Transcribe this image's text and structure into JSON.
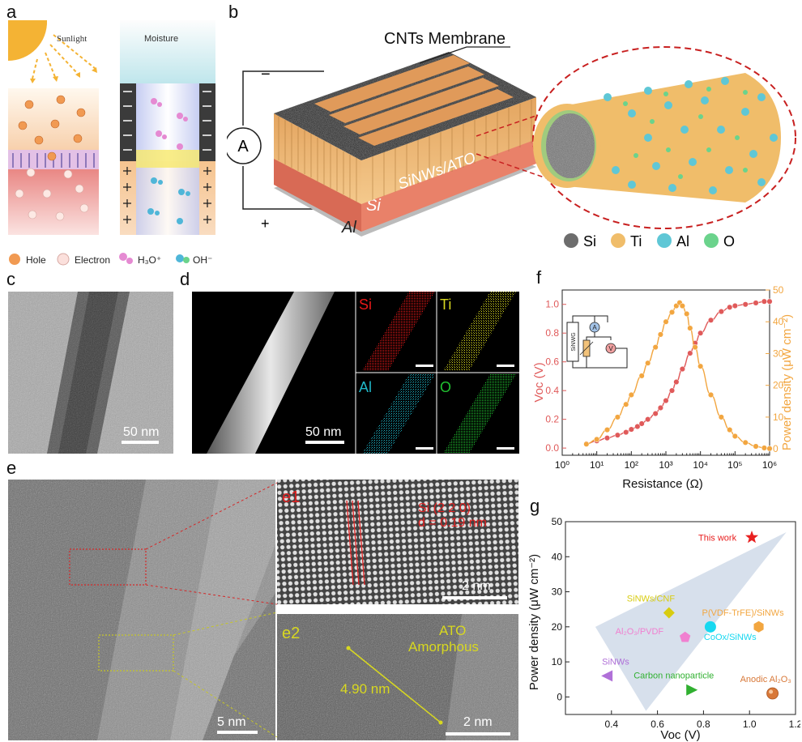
{
  "panel_letters": {
    "a": "a",
    "b": "b",
    "c": "c",
    "d": "d",
    "e": "e",
    "f": "f",
    "g": "g"
  },
  "panel_a": {
    "sunlight": "Sunlight",
    "moisture": "Moisture",
    "legend": {
      "hole": "Hole",
      "electron": "Electron",
      "h3o": "H₃O⁺",
      "oh": "OH⁻"
    }
  },
  "panel_b": {
    "membrane_label": "CNTs Membrane",
    "layer_top": "SiNWs/ATO",
    "layer_mid": "Si",
    "layer_bottom": "Al",
    "ammeter": "A",
    "minus": "−",
    "plus": "+",
    "legend": [
      "Si",
      "Ti",
      "Al",
      "O"
    ],
    "colors": {
      "si": "#6d6d6d",
      "ti": "#f0bd6a",
      "al": "#5fc7d6",
      "o": "#6bd38c",
      "wafer": "#e07a64",
      "membrane": "#1a1a1a"
    }
  },
  "panel_c": {
    "scale": "50 nm"
  },
  "panel_d": {
    "scale": "50 nm",
    "maps": [
      "Si",
      "Ti",
      "Al",
      "O"
    ],
    "map_colors": [
      "#e81818",
      "#d8d820",
      "#20b8c8",
      "#20c030"
    ]
  },
  "panel_e": {
    "scale": "5 nm",
    "e1_tag": "e1",
    "e1_line1": "Si (2 2 0)",
    "e1_line2": "d = 0.19 nm",
    "e1_scale": "2 nm",
    "e2_tag": "e2",
    "e2_line1": "ATO",
    "e2_line2": "Amorphous",
    "e2_measure": "4.90 nm",
    "e2_scale": "2 nm"
  },
  "chart_data": [
    {
      "id": "f",
      "type": "line",
      "xlabel": "Resistance (Ω)",
      "ylabel_left": "Voc (V)",
      "ylabel_right": "Power density (μW cm⁻²)",
      "xscale": "log",
      "xlim": [
        1,
        1000000
      ],
      "x_ticks": [
        "10⁰",
        "10¹",
        "10²",
        "10³",
        "10⁴",
        "10⁵",
        "10⁶"
      ],
      "ylim_left": [
        -0.05,
        1.1
      ],
      "ylim_right": [
        -2,
        50
      ],
      "y_ticks_left": [
        "0.0",
        "0.2",
        "0.4",
        "0.6",
        "0.8",
        "1.0"
      ],
      "y_ticks_right": [
        "0",
        "10",
        "20",
        "30",
        "40",
        "50"
      ],
      "series": [
        {
          "name": "Voc",
          "axis": "left",
          "color": "#e05a5a",
          "x": [
            5,
            10,
            20,
            40,
            70,
            100,
            150,
            200,
            300,
            500,
            700,
            1000,
            1500,
            2000,
            3000,
            5000,
            7000,
            10000,
            20000,
            40000,
            70000,
            100000,
            200000,
            400000,
            700000,
            1000000
          ],
          "y": [
            0.03,
            0.05,
            0.07,
            0.09,
            0.11,
            0.13,
            0.15,
            0.17,
            0.2,
            0.24,
            0.28,
            0.33,
            0.4,
            0.46,
            0.55,
            0.66,
            0.73,
            0.8,
            0.89,
            0.95,
            0.98,
            0.99,
            1.0,
            1.01,
            1.02,
            1.02
          ]
        },
        {
          "name": "Power density",
          "axis": "right",
          "color": "#f2a640",
          "x": [
            5,
            10,
            20,
            40,
            70,
            100,
            200,
            300,
            500,
            700,
            1000,
            1500,
            2000,
            2500,
            3000,
            4000,
            5000,
            7000,
            10000,
            20000,
            40000,
            70000,
            100000,
            200000,
            400000,
            700000,
            1000000
          ],
          "y": [
            1.5,
            3.0,
            6.0,
            10.0,
            14.0,
            17.0,
            23.0,
            27.0,
            32.0,
            36.0,
            40.0,
            43.0,
            45.0,
            46.0,
            45.0,
            42.5,
            38.0,
            32.0,
            26.0,
            17.0,
            10.0,
            6.0,
            4.0,
            2.0,
            0.8,
            0.3,
            0.1
          ]
        }
      ],
      "inset": {
        "device": "SiNWG",
        "meter_a": "A",
        "meter_v": "V"
      }
    },
    {
      "id": "g",
      "type": "scatter",
      "xlabel": "Voc (V)",
      "ylabel": "Power density (μW cm⁻²)",
      "xlim": [
        0.2,
        1.2
      ],
      "ylim": [
        -5,
        50
      ],
      "x_ticks": [
        0.4,
        0.6,
        0.8,
        1.0,
        1.2
      ],
      "y_ticks": [
        0,
        10,
        20,
        30,
        40,
        50
      ],
      "points": [
        {
          "label": "This work",
          "x": 1.01,
          "y": 45.5,
          "color": "#e82020",
          "marker": "star"
        },
        {
          "label": "SiNWs/CNF",
          "x": 0.65,
          "y": 24,
          "color": "#d8cc10",
          "marker": "diamond"
        },
        {
          "label": "P(VDF-TrFE)/SiNWs",
          "x": 1.04,
          "y": 20,
          "color": "#f2a640",
          "marker": "hexagon"
        },
        {
          "label": "CoOx/SiNWs",
          "x": 0.83,
          "y": 20,
          "color": "#18d8f0",
          "marker": "circle"
        },
        {
          "label": "Al₂O₃/PVDF",
          "x": 0.72,
          "y": 17,
          "color": "#f080d0",
          "marker": "pentagon"
        },
        {
          "label": "SiNWs",
          "x": 0.38,
          "y": 6,
          "color": "#b070d8",
          "marker": "triangle-left"
        },
        {
          "label": "Carbon nanoparticle",
          "x": 0.75,
          "y": 2,
          "color": "#30b030",
          "marker": "triangle-right"
        },
        {
          "label": "Anodic Al₂O₃",
          "x": 1.1,
          "y": 1,
          "color": "#d87838",
          "marker": "sphere"
        }
      ]
    }
  ]
}
